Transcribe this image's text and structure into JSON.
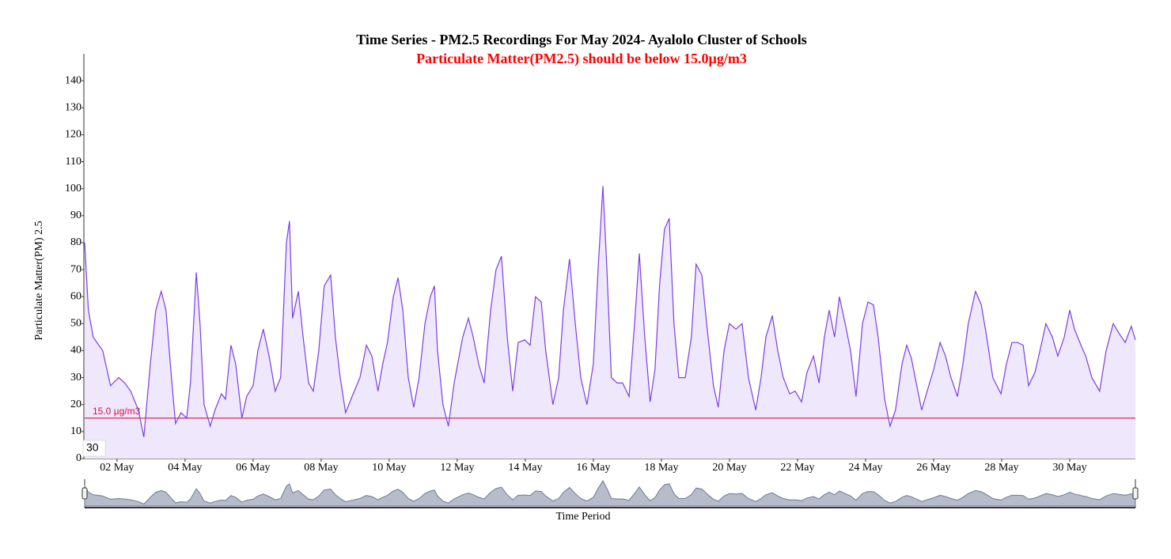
{
  "chart_data": {
    "type": "area",
    "title": "Time Series - PM2.5 Recordings For May 2024- Ayalolo Cluster of Schools",
    "subtitle": "Particulate Matter(PM2.5) should be below 15.0µg/m3",
    "y_label": "Particulate Matter(PM) 2.5",
    "x_label": "Time Period",
    "zoom_label": "30",
    "color": "#7b3fe4",
    "fill": "#efe7fc",
    "threshold": {
      "value": 15.0,
      "label": "15.0 µg/m3",
      "color": "#dc143c"
    },
    "xlim": [
      1.05,
      31.93
    ],
    "ylim": [
      0,
      150
    ],
    "yticks": [
      0,
      10,
      20,
      30,
      40,
      50,
      60,
      70,
      80,
      90,
      100,
      110,
      120,
      130,
      140
    ],
    "xticks": [
      {
        "value": 2,
        "label": "02 May"
      },
      {
        "value": 4,
        "label": "04 May"
      },
      {
        "value": 6,
        "label": "06 May"
      },
      {
        "value": 8,
        "label": "08 May"
      },
      {
        "value": 10,
        "label": "10 May"
      },
      {
        "value": 12,
        "label": "12 May"
      },
      {
        "value": 14,
        "label": "14 May"
      },
      {
        "value": 16,
        "label": "16 May"
      },
      {
        "value": 18,
        "label": "18 May"
      },
      {
        "value": 20,
        "label": "20 May"
      },
      {
        "value": 22,
        "label": "22 May"
      },
      {
        "value": 24,
        "label": "24 May"
      },
      {
        "value": 26,
        "label": "26 May"
      },
      {
        "value": 28,
        "label": "28 May"
      },
      {
        "value": 30,
        "label": "30 May"
      }
    ],
    "x": [
      1.05,
      1.16,
      1.3,
      1.58,
      1.81,
      2.05,
      2.23,
      2.4,
      2.63,
      2.79,
      2.98,
      3.14,
      3.3,
      3.44,
      3.6,
      3.72,
      3.88,
      4.05,
      4.16,
      4.33,
      4.44,
      4.56,
      4.74,
      4.88,
      5.07,
      5.19,
      5.35,
      5.49,
      5.67,
      5.81,
      6.0,
      6.14,
      6.3,
      6.47,
      6.65,
      6.81,
      6.98,
      7.07,
      7.16,
      7.33,
      7.47,
      7.63,
      7.77,
      7.93,
      8.09,
      8.28,
      8.42,
      8.56,
      8.72,
      8.91,
      9.14,
      9.33,
      9.49,
      9.67,
      9.81,
      9.95,
      10.12,
      10.26,
      10.4,
      10.56,
      10.72,
      10.88,
      11.05,
      11.21,
      11.33,
      11.42,
      11.58,
      11.74,
      11.91,
      12.16,
      12.33,
      12.47,
      12.63,
      12.79,
      12.98,
      13.14,
      13.3,
      13.47,
      13.63,
      13.79,
      13.98,
      14.14,
      14.3,
      14.47,
      14.6,
      14.81,
      14.98,
      15.12,
      15.3,
      15.47,
      15.63,
      15.81,
      16.0,
      16.14,
      16.28,
      16.4,
      16.53,
      16.7,
      16.86,
      17.05,
      17.21,
      17.35,
      17.51,
      17.67,
      17.81,
      17.95,
      18.09,
      18.23,
      18.37,
      18.51,
      18.7,
      18.88,
      19.02,
      19.19,
      19.33,
      19.53,
      19.67,
      19.84,
      20.0,
      20.19,
      20.37,
      20.56,
      20.77,
      20.93,
      21.07,
      21.26,
      21.42,
      21.58,
      21.77,
      21.93,
      22.12,
      22.28,
      22.47,
      22.63,
      22.79,
      22.93,
      23.09,
      23.23,
      23.4,
      23.56,
      23.72,
      23.91,
      24.07,
      24.23,
      24.37,
      24.56,
      24.72,
      24.88,
      25.07,
      25.21,
      25.35,
      25.49,
      25.65,
      25.81,
      26.0,
      26.19,
      26.35,
      26.51,
      26.7,
      26.86,
      27.02,
      27.23,
      27.4,
      27.56,
      27.74,
      27.98,
      28.14,
      28.3,
      28.47,
      28.63,
      28.79,
      28.98,
      29.16,
      29.3,
      29.49,
      29.65,
      29.84,
      30.0,
      30.14,
      30.33,
      30.47,
      30.65,
      30.88,
      31.07,
      31.28,
      31.47,
      31.63,
      31.81,
      31.93
    ],
    "values": [
      80,
      55,
      45,
      40,
      27,
      30,
      28,
      25,
      18,
      8,
      35,
      55,
      62,
      55,
      30,
      13,
      17,
      15,
      28,
      69,
      50,
      20,
      12,
      18,
      24,
      22,
      42,
      35,
      15,
      23,
      27,
      40,
      48,
      38,
      25,
      30,
      80,
      88,
      52,
      62,
      45,
      28,
      25,
      40,
      64,
      68,
      45,
      30,
      17,
      23,
      30,
      42,
      38,
      25,
      35,
      43,
      60,
      67,
      55,
      30,
      19,
      30,
      50,
      60,
      64,
      40,
      20,
      12,
      28,
      45,
      52,
      45,
      35,
      28,
      55,
      70,
      75,
      45,
      25,
      43,
      44,
      42,
      60,
      58,
      40,
      20,
      30,
      55,
      74,
      50,
      30,
      20,
      35,
      70,
      101,
      70,
      30,
      28,
      28,
      23,
      50,
      76,
      45,
      21,
      33,
      65,
      85,
      89,
      50,
      30,
      30,
      45,
      72,
      68,
      50,
      27,
      19,
      40,
      50,
      48,
      50,
      30,
      18,
      30,
      45,
      53,
      40,
      30,
      24,
      25,
      21,
      32,
      38,
      28,
      45,
      55,
      45,
      60,
      50,
      40,
      23,
      50,
      58,
      57,
      45,
      22,
      12,
      18,
      35,
      42,
      37,
      28,
      18,
      25,
      33,
      43,
      38,
      30,
      23,
      35,
      50,
      62,
      57,
      45,
      30,
      24,
      35,
      43,
      43,
      42,
      27,
      32,
      42,
      50,
      45,
      38,
      45,
      55,
      48,
      42,
      38,
      30,
      25,
      40,
      50,
      46,
      43,
      49,
      44
    ]
  }
}
